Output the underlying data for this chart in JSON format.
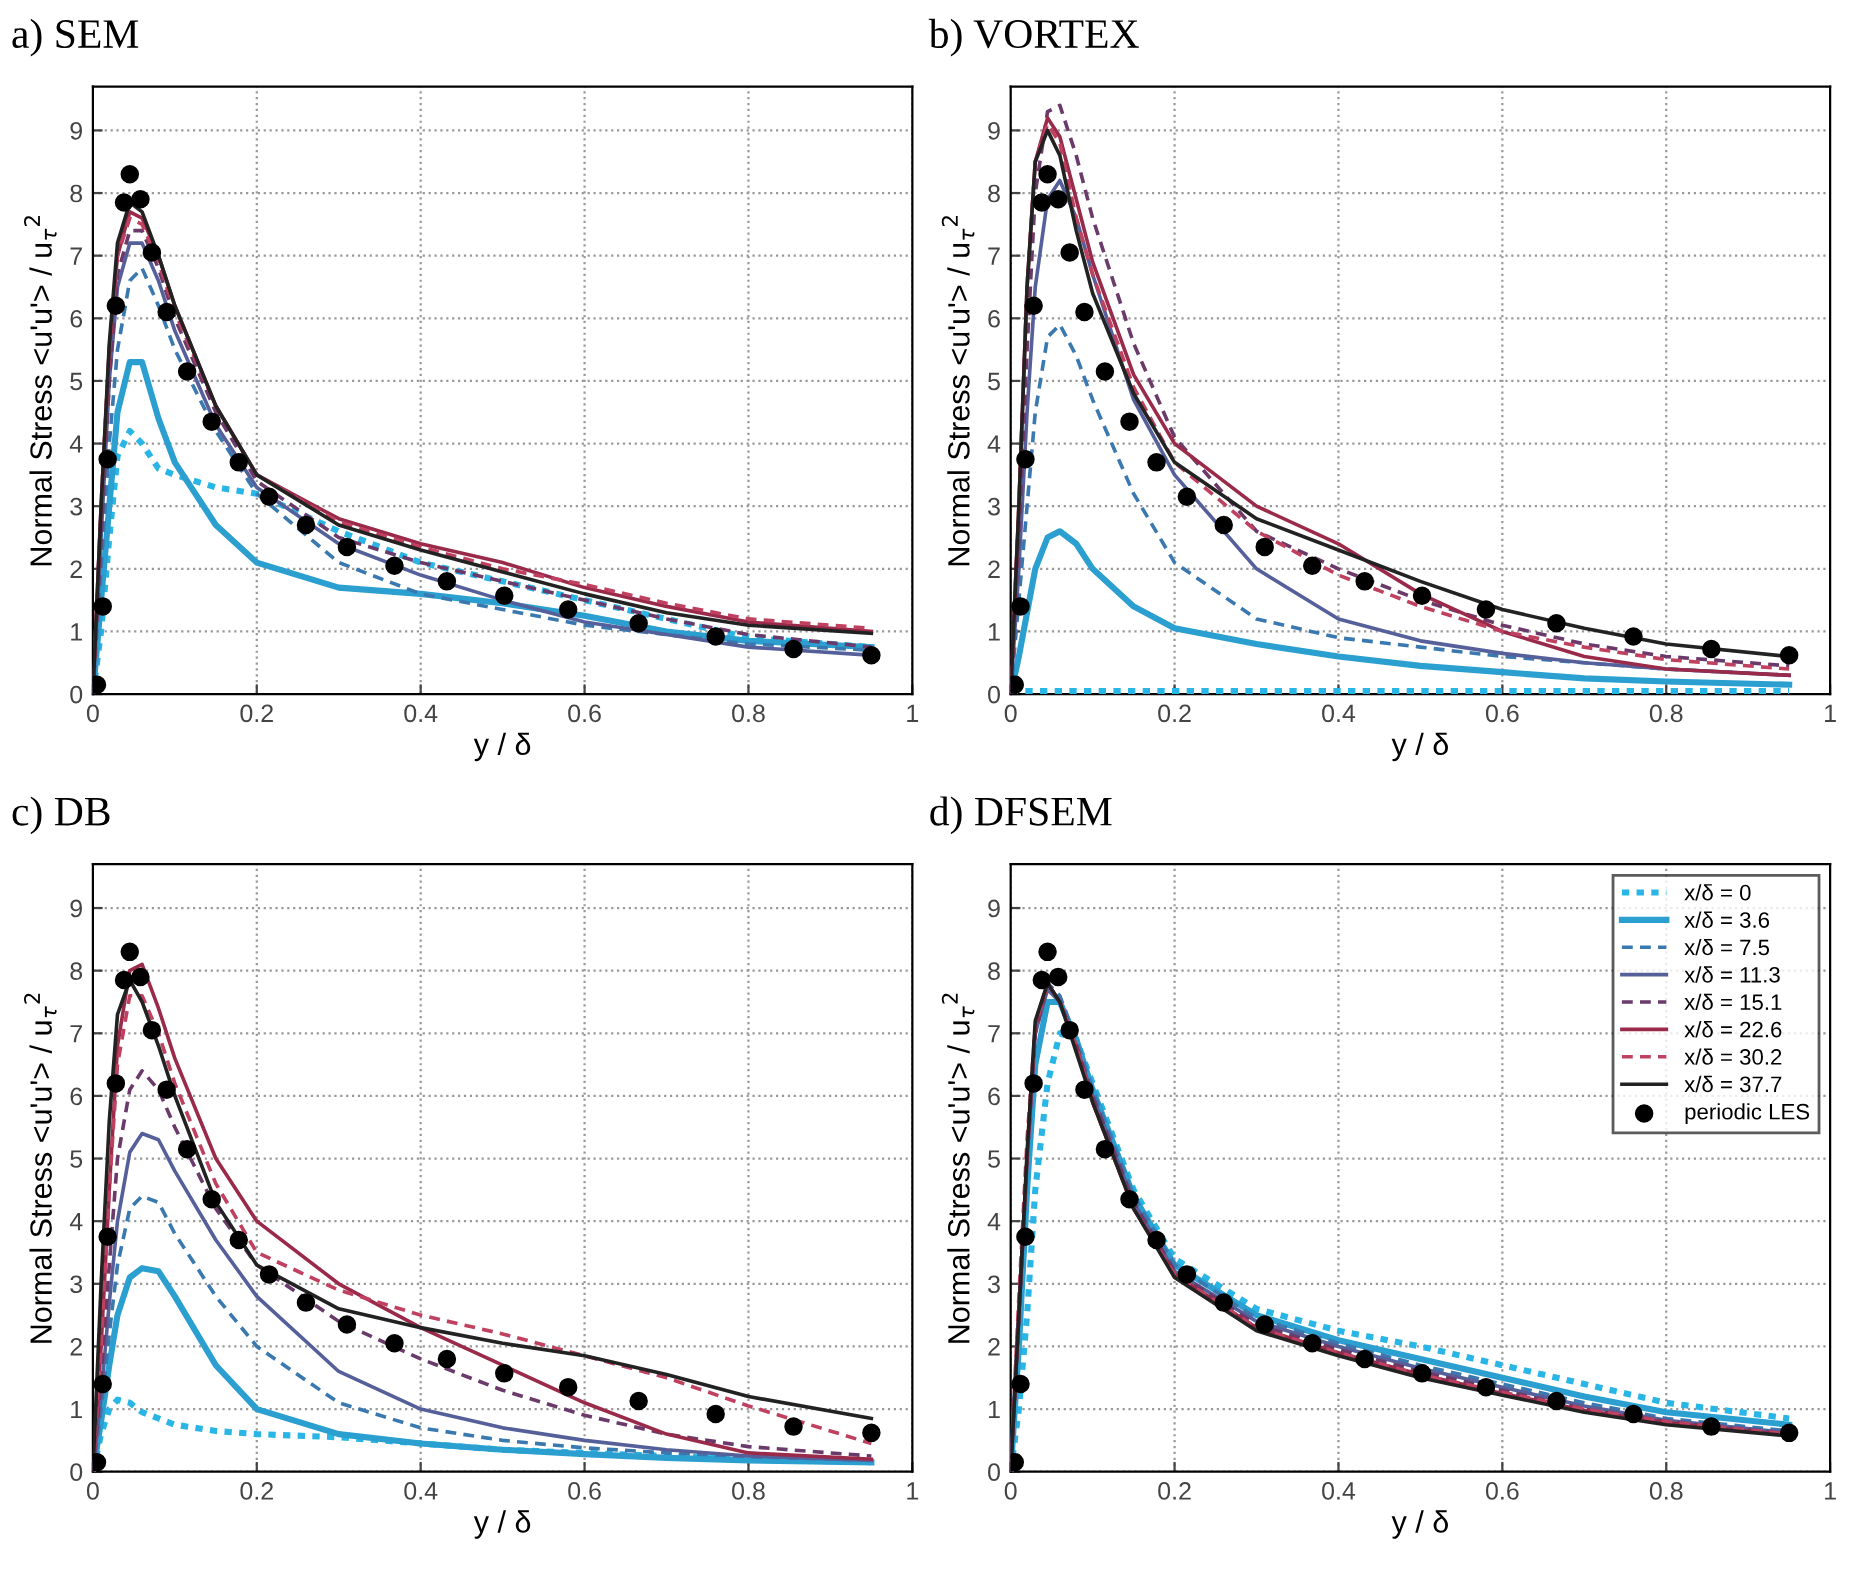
{
  "chart_data": [
    {
      "type": "line",
      "title": "a) SEM",
      "xlabel": "y / δ",
      "ylabel": "Normal Stress <u'u'> / u$_{τ}$$^{2}$",
      "xlim": [
        0,
        1
      ],
      "ylim": [
        0,
        9.7
      ],
      "xticks": [
        0,
        0.2,
        0.4,
        0.6,
        0.8,
        1
      ],
      "yticks": [
        0,
        1,
        2,
        3,
        4,
        5,
        6,
        7,
        8,
        9
      ],
      "grid": true,
      "x": [
        0,
        0.01,
        0.02,
        0.03,
        0.045,
        0.06,
        0.08,
        0.1,
        0.15,
        0.2,
        0.3,
        0.4,
        0.5,
        0.6,
        0.7,
        0.8,
        0.95
      ],
      "series": [
        {
          "color": "#29b6e6",
          "line_style": "dotted",
          "values": [
            0,
            1,
            2.5,
            3.8,
            4.2,
            4.0,
            3.6,
            3.5,
            3.3,
            3.2,
            2.6,
            2.1,
            1.8,
            1.5,
            1.2,
            0.9,
            0.75
          ]
        },
        {
          "color": "#2a9fd0",
          "line_style": "solid",
          "values": [
            0,
            1.5,
            3,
            4.5,
            5.3,
            5.3,
            4.4,
            3.7,
            2.7,
            2.1,
            1.7,
            1.6,
            1.45,
            1.25,
            1.0,
            0.85,
            0.75
          ]
        },
        {
          "color": "#3a78b0",
          "line_style": "dashed",
          "values": [
            0,
            2,
            4,
            5.5,
            6.6,
            6.8,
            6.2,
            5.5,
            4.2,
            3.2,
            2.1,
            1.6,
            1.35,
            1.1,
            0.95,
            0.8,
            0.7
          ]
        },
        {
          "color": "#55609a",
          "line_style": "solid",
          "values": [
            0,
            2.5,
            5,
            6.5,
            7.2,
            7.2,
            6.6,
            5.8,
            4.3,
            3.3,
            2.4,
            1.9,
            1.5,
            1.15,
            0.95,
            0.75,
            0.62
          ]
        },
        {
          "color": "#6a3a6a",
          "line_style": "dashed",
          "values": [
            0,
            2.5,
            5,
            6.7,
            7.4,
            7.4,
            6.8,
            6.0,
            4.5,
            3.4,
            2.5,
            2.1,
            1.8,
            1.5,
            1.2,
            0.95,
            0.75
          ]
        },
        {
          "color": "#9a2a4a",
          "line_style": "solid",
          "values": [
            0,
            3,
            5.5,
            7,
            7.7,
            7.6,
            7.0,
            6.2,
            4.6,
            3.5,
            2.8,
            2.4,
            2.1,
            1.7,
            1.4,
            1.15,
            1.0
          ]
        },
        {
          "color": "#c04060",
          "line_style": "dashed",
          "values": [
            0,
            3,
            5.5,
            7,
            7.6,
            7.5,
            6.9,
            6.1,
            4.6,
            3.5,
            2.75,
            2.35,
            2.0,
            1.75,
            1.45,
            1.2,
            1.05
          ]
        },
        {
          "color": "#222222",
          "line_style": "solid",
          "values": [
            0,
            3,
            5.6,
            7.2,
            7.85,
            7.7,
            7.0,
            6.2,
            4.6,
            3.5,
            2.7,
            2.3,
            1.95,
            1.6,
            1.3,
            1.1,
            0.97
          ]
        },
        {
          "type": "scatter",
          "marker": "circle",
          "color": "#000000",
          "x": [
            0.005,
            0.012,
            0.018,
            0.028,
            0.038,
            0.045,
            0.058,
            0.072,
            0.09,
            0.115,
            0.145,
            0.178,
            0.215,
            0.26,
            0.31,
            0.368,
            0.432,
            0.502,
            0.58,
            0.666,
            0.76,
            0.855,
            0.95
          ],
          "values": [
            0.15,
            1.4,
            3.75,
            6.2,
            7.85,
            8.3,
            7.9,
            7.05,
            6.1,
            5.15,
            4.35,
            3.7,
            3.15,
            2.7,
            2.35,
            2.05,
            1.8,
            1.57,
            1.35,
            1.13,
            0.92,
            0.72,
            0.62
          ]
        }
      ]
    },
    {
      "type": "line",
      "title": "b) VORTEX",
      "xlabel": "y / δ",
      "ylabel": "Normal Stress <u'u'> / u$_{τ}$$^{2}$",
      "xlim": [
        0,
        1
      ],
      "ylim": [
        0,
        9.7
      ],
      "xticks": [
        0,
        0.2,
        0.4,
        0.6,
        0.8,
        1
      ],
      "yticks": [
        0,
        1,
        2,
        3,
        4,
        5,
        6,
        7,
        8,
        9
      ],
      "grid": true,
      "x": [
        0,
        0.01,
        0.02,
        0.03,
        0.045,
        0.06,
        0.08,
        0.1,
        0.15,
        0.2,
        0.3,
        0.4,
        0.5,
        0.6,
        0.7,
        0.8,
        0.95
      ],
      "series": [
        {
          "color": "#29b6e6",
          "line_style": "dotted",
          "values": [
            0.05,
            0.05,
            0.05,
            0.05,
            0.05,
            0.05,
            0.05,
            0.05,
            0.05,
            0.05,
            0.05,
            0.05,
            0.05,
            0.05,
            0.05,
            0.05,
            0.05
          ]
        },
        {
          "color": "#2a9fd0",
          "line_style": "solid",
          "values": [
            0,
            0.6,
            1.3,
            2.0,
            2.5,
            2.6,
            2.4,
            2.0,
            1.4,
            1.05,
            0.8,
            0.6,
            0.45,
            0.35,
            0.25,
            0.2,
            0.15
          ]
        },
        {
          "color": "#3a78b0",
          "line_style": "dashed",
          "values": [
            0,
            1.5,
            3,
            4.5,
            5.7,
            5.9,
            5.4,
            4.7,
            3.2,
            2.1,
            1.2,
            0.9,
            0.75,
            0.6,
            0.5,
            0.4,
            0.3
          ]
        },
        {
          "color": "#55609a",
          "line_style": "solid",
          "values": [
            0,
            2,
            4.5,
            6.5,
            7.9,
            8.2,
            7.6,
            6.7,
            4.7,
            3.5,
            2.0,
            1.2,
            0.85,
            0.65,
            0.5,
            0.4,
            0.3
          ]
        },
        {
          "color": "#6a3a6a",
          "line_style": "dashed",
          "values": [
            0,
            2.5,
            5.5,
            8,
            9.3,
            9.4,
            8.6,
            7.6,
            5.6,
            4.1,
            2.6,
            2.0,
            1.5,
            1.1,
            0.8,
            0.6,
            0.45
          ]
        },
        {
          "color": "#9a2a4a",
          "line_style": "solid",
          "values": [
            0,
            3,
            6.5,
            8.5,
            9.2,
            8.9,
            7.9,
            6.9,
            5.1,
            4.0,
            3.0,
            2.4,
            1.6,
            1.0,
            0.6,
            0.4,
            0.3
          ]
        },
        {
          "color": "#c04060",
          "line_style": "dashed",
          "values": [
            0,
            3,
            6.5,
            8.5,
            9.1,
            8.8,
            7.6,
            6.7,
            4.9,
            3.7,
            2.6,
            1.9,
            1.4,
            1.0,
            0.75,
            0.55,
            0.4
          ]
        },
        {
          "color": "#222222",
          "line_style": "solid",
          "values": [
            0,
            3,
            6.5,
            8.5,
            9.0,
            8.6,
            7.4,
            6.4,
            4.8,
            3.7,
            2.8,
            2.3,
            1.8,
            1.35,
            1.05,
            0.8,
            0.6
          ]
        },
        {
          "type": "scatter",
          "marker": "circle",
          "color": "#000000",
          "x": [
            0.005,
            0.012,
            0.018,
            0.028,
            0.038,
            0.045,
            0.058,
            0.072,
            0.09,
            0.115,
            0.145,
            0.178,
            0.215,
            0.26,
            0.31,
            0.368,
            0.432,
            0.502,
            0.58,
            0.666,
            0.76,
            0.855,
            0.95
          ],
          "values": [
            0.15,
            1.4,
            3.75,
            6.2,
            7.85,
            8.3,
            7.9,
            7.05,
            6.1,
            5.15,
            4.35,
            3.7,
            3.15,
            2.7,
            2.35,
            2.05,
            1.8,
            1.57,
            1.35,
            1.13,
            0.92,
            0.72,
            0.62
          ]
        }
      ]
    },
    {
      "type": "line",
      "title": "c) DB",
      "xlabel": "y / δ",
      "ylabel": "Normal Stress <u'u'> / u$_{τ}$$^{2}$",
      "xlim": [
        0,
        1
      ],
      "ylim": [
        0,
        9.7
      ],
      "xticks": [
        0,
        0.2,
        0.4,
        0.6,
        0.8,
        1
      ],
      "yticks": [
        0,
        1,
        2,
        3,
        4,
        5,
        6,
        7,
        8,
        9
      ],
      "grid": true,
      "x": [
        0,
        0.01,
        0.02,
        0.03,
        0.045,
        0.06,
        0.08,
        0.1,
        0.15,
        0.2,
        0.3,
        0.4,
        0.5,
        0.6,
        0.7,
        0.8,
        0.95
      ],
      "series": [
        {
          "color": "#29b6e6",
          "line_style": "dotted",
          "values": [
            0,
            0.6,
            1.0,
            1.15,
            1.1,
            0.95,
            0.85,
            0.75,
            0.65,
            0.6,
            0.55,
            0.45,
            0.35,
            0.3,
            0.25,
            0.2,
            0.15
          ]
        },
        {
          "color": "#2a9fd0",
          "line_style": "solid",
          "values": [
            0,
            0.8,
            1.7,
            2.5,
            3.1,
            3.25,
            3.2,
            2.8,
            1.7,
            1.0,
            0.6,
            0.45,
            0.35,
            0.28,
            0.22,
            0.18,
            0.15
          ]
        },
        {
          "color": "#3a78b0",
          "line_style": "dashed",
          "values": [
            0,
            1,
            2.2,
            3.3,
            4.2,
            4.4,
            4.3,
            3.8,
            2.8,
            2.0,
            1.1,
            0.7,
            0.5,
            0.38,
            0.3,
            0.24,
            0.18
          ]
        },
        {
          "color": "#55609a",
          "line_style": "solid",
          "values": [
            0,
            1.2,
            2.7,
            4.0,
            5.1,
            5.4,
            5.3,
            4.8,
            3.7,
            2.8,
            1.6,
            1.0,
            0.7,
            0.5,
            0.35,
            0.25,
            0.18
          ]
        },
        {
          "color": "#6a3a6a",
          "line_style": "dashed",
          "values": [
            0,
            1.5,
            3.3,
            5.0,
            6.1,
            6.4,
            6.1,
            5.5,
            4.2,
            3.3,
            2.4,
            1.8,
            1.3,
            0.9,
            0.6,
            0.4,
            0.25
          ]
        },
        {
          "color": "#9a2a4a",
          "line_style": "solid",
          "values": [
            0,
            2,
            4.5,
            6.8,
            8.0,
            8.1,
            7.4,
            6.6,
            5.0,
            4.0,
            3.0,
            2.3,
            1.7,
            1.1,
            0.6,
            0.3,
            0.2
          ]
        },
        {
          "color": "#c04060",
          "line_style": "dashed",
          "values": [
            0,
            2,
            4.5,
            6.5,
            7.6,
            7.6,
            7.0,
            6.2,
            4.6,
            3.5,
            2.9,
            2.5,
            2.2,
            1.85,
            1.5,
            1.05,
            0.45
          ]
        },
        {
          "color": "#222222",
          "line_style": "solid",
          "values": [
            0,
            3,
            5.6,
            7.3,
            7.85,
            7.5,
            6.8,
            6.0,
            4.3,
            3.3,
            2.6,
            2.3,
            2.05,
            1.85,
            1.55,
            1.2,
            0.85
          ]
        },
        {
          "type": "scatter",
          "marker": "circle",
          "color": "#000000",
          "x": [
            0.005,
            0.012,
            0.018,
            0.028,
            0.038,
            0.045,
            0.058,
            0.072,
            0.09,
            0.115,
            0.145,
            0.178,
            0.215,
            0.26,
            0.31,
            0.368,
            0.432,
            0.502,
            0.58,
            0.666,
            0.76,
            0.855,
            0.95
          ],
          "values": [
            0.15,
            1.4,
            3.75,
            6.2,
            7.85,
            8.3,
            7.9,
            7.05,
            6.1,
            5.15,
            4.35,
            3.7,
            3.15,
            2.7,
            2.35,
            2.05,
            1.8,
            1.57,
            1.35,
            1.13,
            0.92,
            0.72,
            0.62
          ]
        }
      ]
    },
    {
      "type": "line",
      "title": "d) DFSEM",
      "xlabel": "y / δ",
      "ylabel": "Normal Stress <u'u'> / u$_{τ}$$^{2}$",
      "xlim": [
        0,
        1
      ],
      "ylim": [
        0,
        9.7
      ],
      "xticks": [
        0,
        0.2,
        0.4,
        0.6,
        0.8,
        1
      ],
      "yticks": [
        0,
        1,
        2,
        3,
        4,
        5,
        6,
        7,
        8,
        9
      ],
      "grid": true,
      "legend": "top right",
      "x": [
        0,
        0.01,
        0.02,
        0.03,
        0.045,
        0.06,
        0.08,
        0.1,
        0.15,
        0.2,
        0.3,
        0.4,
        0.5,
        0.6,
        0.7,
        0.8,
        0.95
      ],
      "series": [
        {
          "name": "x/δ = 0",
          "color": "#29b6e6",
          "line_style": "dotted",
          "values": [
            0,
            1,
            2.5,
            4.5,
            6.2,
            7.0,
            6.9,
            6.2,
            4.5,
            3.4,
            2.6,
            2.25,
            2.0,
            1.7,
            1.4,
            1.1,
            0.85
          ]
        },
        {
          "name": "x/δ = 3.6",
          "color": "#2a9fd0",
          "line_style": "solid",
          "values": [
            0,
            2,
            4.5,
            6.5,
            7.5,
            7.5,
            6.9,
            6.1,
            4.4,
            3.3,
            2.5,
            2.1,
            1.8,
            1.5,
            1.2,
            0.95,
            0.75
          ]
        },
        {
          "name": "x/δ = 7.5",
          "color": "#3a78b0",
          "line_style": "dashed",
          "values": [
            0,
            2.5,
            5,
            7,
            7.8,
            7.6,
            6.9,
            6.1,
            4.4,
            3.3,
            2.45,
            2.05,
            1.7,
            1.4,
            1.1,
            0.85,
            0.65
          ]
        },
        {
          "name": "x/δ = 11.3",
          "color": "#55609a",
          "line_style": "solid",
          "values": [
            0,
            2.5,
            5,
            7,
            7.7,
            7.5,
            6.8,
            6.0,
            4.3,
            3.2,
            2.4,
            2.0,
            1.65,
            1.35,
            1.05,
            0.82,
            0.62
          ]
        },
        {
          "name": "x/δ = 15.1",
          "color": "#6a3a6a",
          "line_style": "dashed",
          "values": [
            0,
            2.5,
            5,
            7,
            7.8,
            7.5,
            6.8,
            6.0,
            4.3,
            3.2,
            2.35,
            1.95,
            1.6,
            1.3,
            1.0,
            0.8,
            0.6
          ]
        },
        {
          "name": "x/δ = 22.6",
          "color": "#9a2a4a",
          "line_style": "solid",
          "values": [
            0,
            2.5,
            5,
            7.1,
            7.8,
            7.5,
            6.8,
            5.9,
            4.2,
            3.15,
            2.3,
            1.9,
            1.55,
            1.25,
            0.98,
            0.78,
            0.58
          ]
        },
        {
          "name": "x/δ = 30.2",
          "color": "#c04060",
          "line_style": "dashed",
          "values": [
            0.1,
            2.8,
            5.3,
            7.1,
            7.8,
            7.5,
            6.8,
            5.9,
            4.2,
            3.15,
            2.3,
            1.9,
            1.55,
            1.27,
            1.0,
            0.8,
            0.6
          ]
        },
        {
          "name": "x/δ = 37.7",
          "color": "#222222",
          "line_style": "solid",
          "values": [
            0,
            2.5,
            5.1,
            7.2,
            7.8,
            7.5,
            6.7,
            5.9,
            4.2,
            3.1,
            2.25,
            1.85,
            1.5,
            1.22,
            0.95,
            0.75,
            0.57
          ]
        },
        {
          "name": "periodic LES",
          "type": "scatter",
          "marker": "circle",
          "color": "#000000",
          "x": [
            0.005,
            0.012,
            0.018,
            0.028,
            0.038,
            0.045,
            0.058,
            0.072,
            0.09,
            0.115,
            0.145,
            0.178,
            0.215,
            0.26,
            0.31,
            0.368,
            0.432,
            0.502,
            0.58,
            0.666,
            0.76,
            0.855,
            0.95
          ],
          "values": [
            0.15,
            1.4,
            3.75,
            6.2,
            7.85,
            8.3,
            7.9,
            7.05,
            6.1,
            5.15,
            4.35,
            3.7,
            3.15,
            2.7,
            2.35,
            2.05,
            1.8,
            1.57,
            1.35,
            1.13,
            0.92,
            0.72,
            0.62
          ]
        }
      ]
    }
  ]
}
